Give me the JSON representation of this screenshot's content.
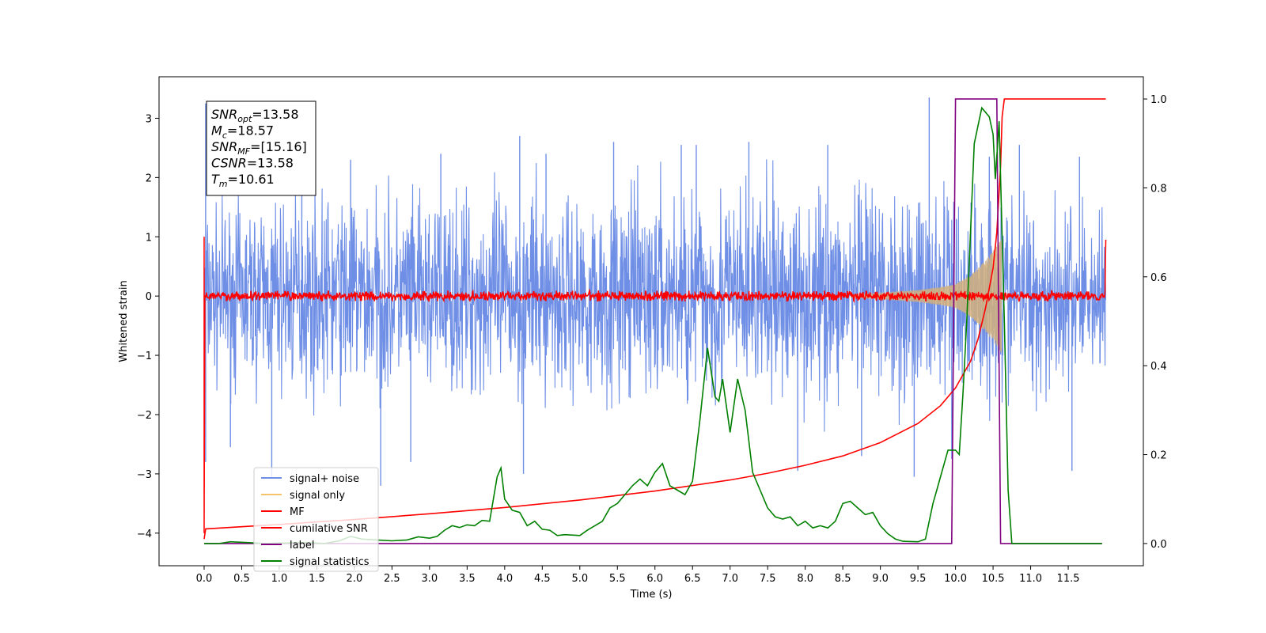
{
  "chart_data": {
    "type": "line",
    "xlabel": "Time (s)",
    "ylabel": "Whitened strain",
    "xlim": [
      -0.6,
      12.5
    ],
    "ylim": [
      -4.55,
      3.7
    ],
    "y2lim": [
      -0.05,
      1.05
    ],
    "xticks": [
      "0.0",
      "0.5",
      "1.0",
      "1.5",
      "2.0",
      "2.5",
      "3.0",
      "3.5",
      "4.0",
      "4.5",
      "5.0",
      "5.5",
      "6.0",
      "6.5",
      "7.0",
      "7.5",
      "8.0",
      "8.5",
      "9.0",
      "9.5",
      "10.0",
      "10.5",
      "11.0",
      "11.5"
    ],
    "yticks": [
      "3",
      "2",
      "1",
      "0",
      "−1",
      "−2",
      "−3",
      "−4"
    ],
    "y2ticks": [
      "1.0",
      "0.8",
      "0.6",
      "0.4",
      "0.2",
      "0.0"
    ],
    "annotation": {
      "lines": [
        {
          "sym": "SNR",
          "sub": "opt",
          "value": "=13.58"
        },
        {
          "sym": "M",
          "sub": "c",
          "value": "=18.57"
        },
        {
          "sym": "SNR",
          "sub": "MF",
          "value": "=[15.16]"
        },
        {
          "sym": "CSNR",
          "sub": "",
          "value": "=13.58"
        },
        {
          "sym": "T",
          "sub": "m",
          "value": "=10.61"
        }
      ]
    },
    "legend": {
      "position": "lower-left",
      "entries": [
        {
          "label": "signal+ noise",
          "color": "#6f8fe6"
        },
        {
          "label": "signal only",
          "color": "#f5c46a"
        },
        {
          "label": "MF",
          "color": "#ff0000"
        },
        {
          "label": "cumilative SNR",
          "color": "#ff0000"
        },
        {
          "label": "label",
          "color": "#800080"
        },
        {
          "label": "signal statistics",
          "color": "#008000"
        }
      ]
    },
    "series": [
      {
        "name": "signal+ noise",
        "axis": "left",
        "color": "#6f8fe6",
        "x_range": [
          0.0,
          12.0
        ],
        "band": [
          [
            0.0,
            -2.0,
            2.0
          ],
          [
            1.0,
            -2.3,
            2.3
          ],
          [
            2.0,
            -2.4,
            2.4
          ],
          [
            3.0,
            -2.3,
            2.3
          ],
          [
            4.0,
            -2.5,
            2.5
          ],
          [
            5.0,
            -2.4,
            2.4
          ],
          [
            6.0,
            -2.6,
            2.6
          ],
          [
            7.0,
            -2.6,
            2.6
          ],
          [
            8.0,
            -2.5,
            2.5
          ],
          [
            9.0,
            -2.5,
            2.5
          ],
          [
            10.0,
            -2.6,
            2.6
          ],
          [
            11.0,
            -2.4,
            2.4
          ],
          [
            12.0,
            -2.0,
            2.0
          ]
        ],
        "spikes": [
          [
            0.02,
            3.25
          ],
          [
            0.02,
            -2.8
          ],
          [
            0.35,
            -2.55
          ],
          [
            0.9,
            -3.05
          ],
          [
            1.3,
            2.55
          ],
          [
            1.95,
            2.3
          ],
          [
            2.35,
            -3.2
          ],
          [
            2.75,
            -2.8
          ],
          [
            3.15,
            2.4
          ],
          [
            4.2,
            2.7
          ],
          [
            4.25,
            -3.0
          ],
          [
            4.55,
            2.4
          ],
          [
            5.45,
            2.6
          ],
          [
            6.35,
            2.55
          ],
          [
            6.55,
            2.55
          ],
          [
            7.25,
            2.6
          ],
          [
            7.9,
            -2.95
          ],
          [
            8.3,
            2.55
          ],
          [
            8.75,
            -2.7
          ],
          [
            9.45,
            -3.05
          ],
          [
            9.65,
            3.35
          ],
          [
            9.95,
            -2.75
          ],
          [
            10.45,
            2.35
          ],
          [
            10.85,
            2.55
          ],
          [
            11.55,
            -2.95
          ],
          [
            11.65,
            2.35
          ]
        ]
      },
      {
        "name": "signal only",
        "axis": "left",
        "color": "#d4b07a",
        "envelope": [
          [
            8.6,
            0.02
          ],
          [
            9.0,
            0.05
          ],
          [
            9.5,
            0.1
          ],
          [
            9.8,
            0.15
          ],
          [
            10.0,
            0.2
          ],
          [
            10.2,
            0.35
          ],
          [
            10.4,
            0.6
          ],
          [
            10.55,
            0.85
          ],
          [
            10.61,
            0.95
          ]
        ]
      },
      {
        "name": "MF",
        "axis": "left",
        "color": "#ff0000",
        "x_range": [
          0.0,
          12.0
        ],
        "noise_amp": 0.07,
        "edges": [
          [
            0.0,
            1.0
          ],
          [
            0.0,
            -4.0
          ],
          [
            12.0,
            0.95
          ]
        ]
      },
      {
        "name": "cumilative SNR",
        "axis": "right",
        "color": "#ff0000",
        "points": [
          [
            0.0,
            0.01
          ],
          [
            0.02,
            0.033
          ],
          [
            1.0,
            0.043
          ],
          [
            2.0,
            0.054
          ],
          [
            3.0,
            0.067
          ],
          [
            4.0,
            0.081
          ],
          [
            5.0,
            0.098
          ],
          [
            6.0,
            0.118
          ],
          [
            7.0,
            0.143
          ],
          [
            7.5,
            0.158
          ],
          [
            8.0,
            0.176
          ],
          [
            8.5,
            0.197
          ],
          [
            9.0,
            0.227
          ],
          [
            9.5,
            0.27
          ],
          [
            9.8,
            0.31
          ],
          [
            10.0,
            0.35
          ],
          [
            10.2,
            0.41
          ],
          [
            10.3,
            0.46
          ],
          [
            10.4,
            0.53
          ],
          [
            10.5,
            0.62
          ],
          [
            10.55,
            0.7
          ],
          [
            10.6,
            0.85
          ],
          [
            10.62,
            0.96
          ],
          [
            10.65,
            1.0
          ],
          [
            12.0,
            1.0
          ]
        ]
      },
      {
        "name": "label",
        "axis": "right",
        "color": "#800080",
        "points": [
          [
            0.0,
            0.0
          ],
          [
            9.95,
            0.0
          ],
          [
            10.0,
            1.0
          ],
          [
            10.55,
            1.0
          ],
          [
            10.6,
            0.0
          ],
          [
            11.95,
            0.0
          ]
        ]
      },
      {
        "name": "signal statistics",
        "axis": "right",
        "color": "#008000",
        "points": [
          [
            0.0,
            0.0
          ],
          [
            0.2,
            0.0
          ],
          [
            0.35,
            0.004
          ],
          [
            0.6,
            0.002
          ],
          [
            0.8,
            0.0
          ],
          [
            1.0,
            0.001
          ],
          [
            1.4,
            0.002
          ],
          [
            1.6,
            0.0
          ],
          [
            1.8,
            0.006
          ],
          [
            1.95,
            0.016
          ],
          [
            2.1,
            0.01
          ],
          [
            2.3,
            0.008
          ],
          [
            2.5,
            0.006
          ],
          [
            2.7,
            0.008
          ],
          [
            2.85,
            0.015
          ],
          [
            3.0,
            0.012
          ],
          [
            3.1,
            0.016
          ],
          [
            3.2,
            0.03
          ],
          [
            3.3,
            0.04
          ],
          [
            3.4,
            0.036
          ],
          [
            3.5,
            0.042
          ],
          [
            3.6,
            0.04
          ],
          [
            3.7,
            0.052
          ],
          [
            3.8,
            0.05
          ],
          [
            3.9,
            0.15
          ],
          [
            3.95,
            0.17
          ],
          [
            4.0,
            0.1
          ],
          [
            4.1,
            0.075
          ],
          [
            4.2,
            0.07
          ],
          [
            4.3,
            0.04
          ],
          [
            4.4,
            0.05
          ],
          [
            4.5,
            0.032
          ],
          [
            4.6,
            0.03
          ],
          [
            4.7,
            0.018
          ],
          [
            4.8,
            0.02
          ],
          [
            5.0,
            0.018
          ],
          [
            5.1,
            0.03
          ],
          [
            5.2,
            0.04
          ],
          [
            5.3,
            0.05
          ],
          [
            5.4,
            0.08
          ],
          [
            5.5,
            0.09
          ],
          [
            5.6,
            0.11
          ],
          [
            5.7,
            0.13
          ],
          [
            5.8,
            0.145
          ],
          [
            5.9,
            0.13
          ],
          [
            6.0,
            0.16
          ],
          [
            6.1,
            0.18
          ],
          [
            6.2,
            0.13
          ],
          [
            6.3,
            0.12
          ],
          [
            6.4,
            0.11
          ],
          [
            6.5,
            0.14
          ],
          [
            6.6,
            0.28
          ],
          [
            6.7,
            0.44
          ],
          [
            6.8,
            0.33
          ],
          [
            6.85,
            0.32
          ],
          [
            6.9,
            0.37
          ],
          [
            7.0,
            0.25
          ],
          [
            7.1,
            0.37
          ],
          [
            7.2,
            0.3
          ],
          [
            7.3,
            0.16
          ],
          [
            7.4,
            0.12
          ],
          [
            7.5,
            0.08
          ],
          [
            7.6,
            0.06
          ],
          [
            7.7,
            0.055
          ],
          [
            7.8,
            0.06
          ],
          [
            7.9,
            0.04
          ],
          [
            8.0,
            0.05
          ],
          [
            8.1,
            0.035
          ],
          [
            8.2,
            0.04
          ],
          [
            8.3,
            0.035
          ],
          [
            8.4,
            0.05
          ],
          [
            8.5,
            0.09
          ],
          [
            8.6,
            0.095
          ],
          [
            8.7,
            0.08
          ],
          [
            8.8,
            0.065
          ],
          [
            8.9,
            0.07
          ],
          [
            9.0,
            0.04
          ],
          [
            9.1,
            0.022
          ],
          [
            9.2,
            0.01
          ],
          [
            9.3,
            0.005
          ],
          [
            9.5,
            0.004
          ],
          [
            9.6,
            0.01
          ],
          [
            9.7,
            0.09
          ],
          [
            9.75,
            0.12
          ],
          [
            9.8,
            0.15
          ],
          [
            9.9,
            0.21
          ],
          [
            10.0,
            0.21
          ],
          [
            10.05,
            0.2
          ],
          [
            10.1,
            0.34
          ],
          [
            10.15,
            0.5
          ],
          [
            10.25,
            0.9
          ],
          [
            10.35,
            0.98
          ],
          [
            10.45,
            0.96
          ],
          [
            10.5,
            0.92
          ],
          [
            10.53,
            0.82
          ],
          [
            10.58,
            0.95
          ],
          [
            10.65,
            0.5
          ],
          [
            10.7,
            0.12
          ],
          [
            10.75,
            0.0
          ],
          [
            11.95,
            0.0
          ]
        ]
      }
    ]
  }
}
